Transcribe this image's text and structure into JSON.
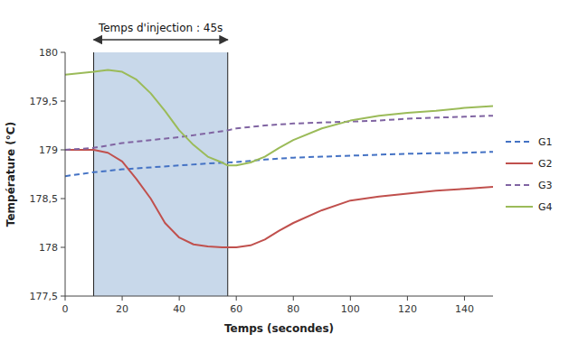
{
  "chart_data": {
    "type": "line",
    "title": "Temps d'injection : 45s",
    "x_label": "Temps (secondes)",
    "y_label": "Température (°C)",
    "xlim": [
      0,
      150
    ],
    "ylim": [
      177.5,
      180
    ],
    "xticks": [
      0,
      20,
      40,
      60,
      80,
      100,
      120,
      140
    ],
    "yticks": [
      {
        "value": 177.5,
        "label": "177,5"
      },
      178,
      {
        "value": 178.5,
        "label": "178,5"
      },
      179,
      {
        "value": 179.5,
        "label": "179,5"
      },
      180
    ],
    "grid": false,
    "legend": "right",
    "shade": {
      "x": [
        10,
        57
      ],
      "color": "#c8d8ea"
    },
    "series": [
      {
        "name": "G1",
        "color": "#4472c4",
        "line_style": "dashed",
        "x": [
          0,
          10,
          20,
          30,
          40,
          50,
          57,
          60,
          70,
          80,
          90,
          100,
          110,
          120,
          130,
          140,
          150
        ],
        "values": [
          178.73,
          178.77,
          178.8,
          178.82,
          178.84,
          178.86,
          178.87,
          178.875,
          178.9,
          178.92,
          178.93,
          178.94,
          178.95,
          178.96,
          178.965,
          178.97,
          178.98
        ]
      },
      {
        "name": "G2",
        "color": "#c0504d",
        "line_style": "solid",
        "x": [
          0,
          10,
          15,
          20,
          25,
          30,
          35,
          40,
          45,
          50,
          55,
          57,
          60,
          65,
          70,
          75,
          80,
          90,
          100,
          110,
          120,
          130,
          140,
          150
        ],
        "values": [
          179.0,
          179.0,
          178.97,
          178.88,
          178.7,
          178.5,
          178.25,
          178.1,
          178.03,
          178.01,
          178.0,
          178.0,
          178.0,
          178.02,
          178.08,
          178.17,
          178.25,
          178.38,
          178.48,
          178.52,
          178.55,
          178.58,
          178.6,
          178.62
        ]
      },
      {
        "name": "G3",
        "color": "#8064a2",
        "line_style": "dashed",
        "x": [
          0,
          10,
          20,
          30,
          40,
          50,
          57,
          60,
          70,
          80,
          90,
          100,
          110,
          120,
          130,
          140,
          150
        ],
        "values": [
          179.0,
          179.02,
          179.07,
          179.1,
          179.13,
          179.17,
          179.2,
          179.22,
          179.25,
          179.27,
          179.28,
          179.29,
          179.3,
          179.32,
          179.33,
          179.34,
          179.35
        ]
      },
      {
        "name": "G4",
        "color": "#9bbb59",
        "line_style": "solid",
        "x": [
          0,
          10,
          15,
          20,
          25,
          30,
          35,
          40,
          45,
          50,
          55,
          57,
          60,
          65,
          70,
          75,
          80,
          90,
          100,
          110,
          120,
          130,
          140,
          150
        ],
        "values": [
          179.77,
          179.8,
          179.82,
          179.8,
          179.72,
          179.58,
          179.4,
          179.2,
          179.05,
          178.93,
          178.87,
          178.84,
          178.84,
          178.87,
          178.93,
          179.02,
          179.1,
          179.22,
          179.3,
          179.35,
          179.38,
          179.4,
          179.43,
          179.45
        ]
      }
    ]
  }
}
